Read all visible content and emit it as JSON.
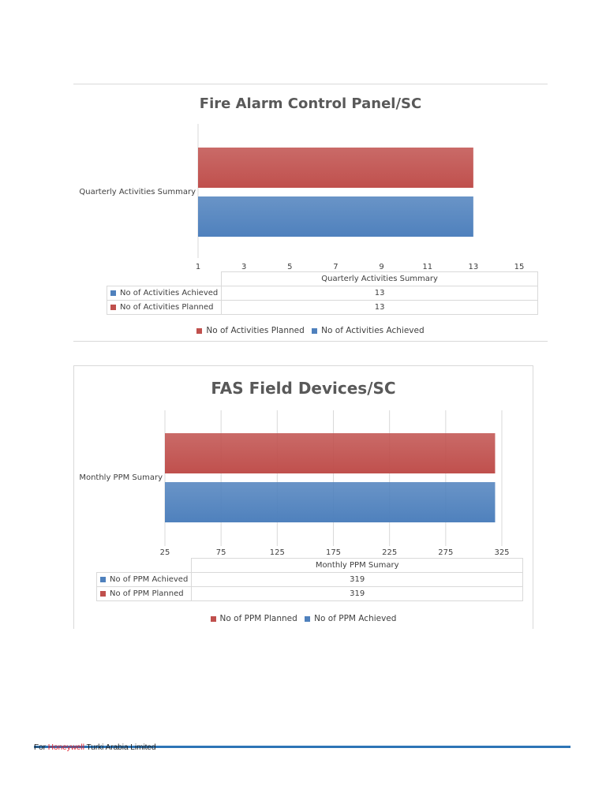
{
  "colors": {
    "planned": "#c0504d",
    "achieved": "#4f81bd",
    "grid": "#d9d9d9"
  },
  "chart_data": [
    {
      "type": "bar",
      "orientation": "horizontal",
      "title": "Fire Alarm Control Panel/SC",
      "categories": [
        "Quarterly Activities Summary"
      ],
      "series": [
        {
          "name": "No of Activities Planned",
          "values": [
            13
          ]
        },
        {
          "name": "No of Activities Achieved",
          "values": [
            13
          ]
        }
      ],
      "xlim": [
        1,
        15
      ],
      "xticks": [
        1,
        3,
        5,
        7,
        9,
        11,
        13,
        15
      ],
      "grid": false,
      "legend": "bottom",
      "data_table": {
        "header": "Quarterly Activities Summary",
        "rows": [
          {
            "label": "No of Activities Achieved",
            "value": "13"
          },
          {
            "label": "No of Activities Planned",
            "value": "13"
          }
        ]
      }
    },
    {
      "type": "bar",
      "orientation": "horizontal",
      "title": "FAS Field Devices/SC",
      "categories": [
        "Monthly PPM Sumary"
      ],
      "series": [
        {
          "name": "No of PPM Planned",
          "values": [
            319
          ]
        },
        {
          "name": "No of PPM Achieved",
          "values": [
            319
          ]
        }
      ],
      "xlim": [
        25,
        325
      ],
      "xticks": [
        25,
        75,
        125,
        175,
        225,
        275,
        325
      ],
      "grid": true,
      "legend": "bottom",
      "data_table": {
        "header": "Monthly PPM Sumary",
        "rows": [
          {
            "label": "No of PPM Achieved",
            "value": "319"
          },
          {
            "label": "No of PPM Planned",
            "value": "319"
          }
        ]
      }
    }
  ],
  "footer": {
    "prefix": "For ",
    "brand": "Honeywell",
    "suffix": " Turki Arabia Limited"
  }
}
